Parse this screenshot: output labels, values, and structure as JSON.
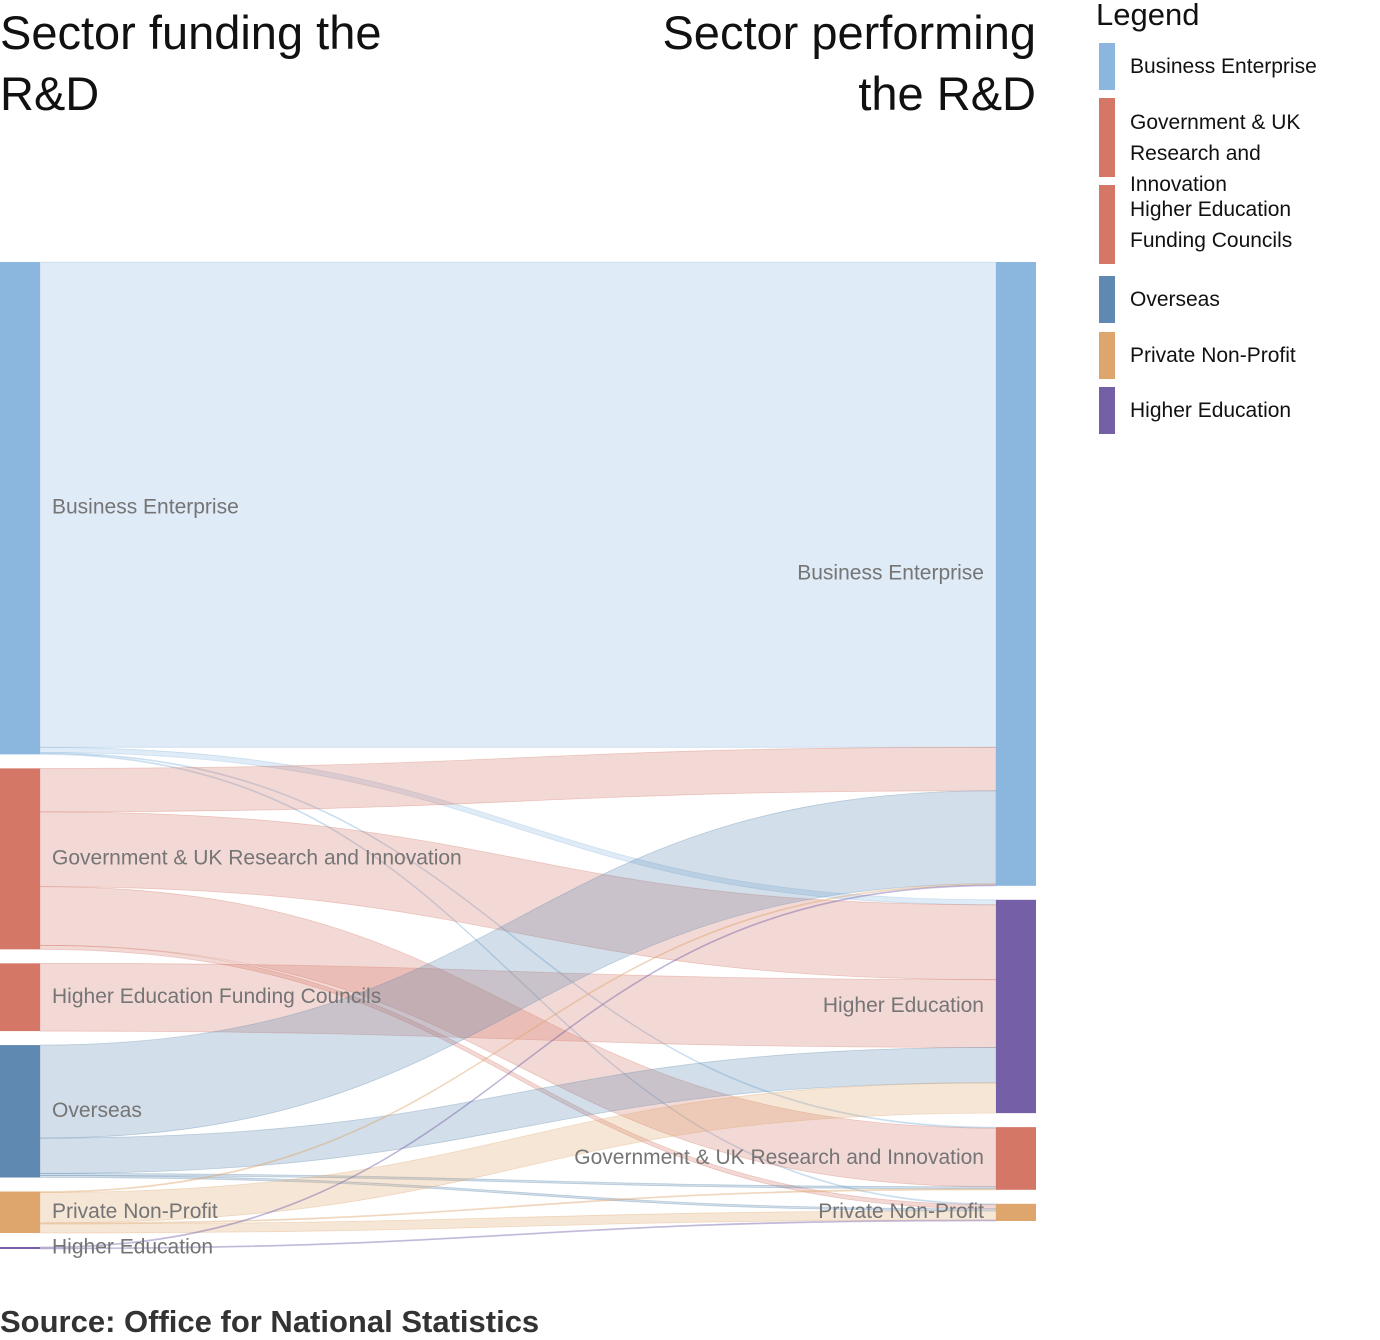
{
  "headings": {
    "left": "Sector funding the R&D",
    "right": "Sector performing the R&D"
  },
  "legend": {
    "title": "Legend",
    "items": [
      {
        "label": "Business Enterprise",
        "color": "#8bb6de"
      },
      {
        "label": "Government & UK Research and Innovation",
        "color": "#d47767"
      },
      {
        "label": "Higher Education Funding Councils",
        "color": "#d47767"
      },
      {
        "label": "Overseas",
        "color": "#5f89b0"
      },
      {
        "label": "Private Non-Profit",
        "color": "#dea66c"
      },
      {
        "label": "Higher Education",
        "color": "#7560a8"
      }
    ]
  },
  "source": "Source: Office for National Statistics",
  "chart_data": {
    "type": "sankey",
    "sources": [
      {
        "id": "s_be",
        "label": "Business Enterprise",
        "color": "#8bb6de"
      },
      {
        "id": "s_gov",
        "label": "Government & UK Research and Innovation",
        "color": "#d47767"
      },
      {
        "id": "s_hefc",
        "label": "Higher Education Funding Councils",
        "color": "#d47767"
      },
      {
        "id": "s_ovs",
        "label": "Overseas",
        "color": "#5f89b0"
      },
      {
        "id": "s_pnp",
        "label": "Private Non-Profit",
        "color": "#dea66c"
      },
      {
        "id": "s_he",
        "label": "Higher Education",
        "color": "#7560a8"
      }
    ],
    "targets": [
      {
        "id": "t_be",
        "label": "Business Enterprise",
        "color": "#8bb6de"
      },
      {
        "id": "t_he",
        "label": "Higher Education",
        "color": "#7560a8"
      },
      {
        "id": "t_gov",
        "label": "Government & UK Research and Innovation",
        "color": "#d47767"
      },
      {
        "id": "t_pnp",
        "label": "Private Non-Profit",
        "color": "#dea66c"
      }
    ],
    "flows": [
      {
        "source": "s_be",
        "target": "t_be",
        "value": 480
      },
      {
        "source": "s_be",
        "target": "t_he",
        "value": 5
      },
      {
        "source": "s_be",
        "target": "t_gov",
        "value": 1
      },
      {
        "source": "s_be",
        "target": "t_pnp",
        "value": 1
      },
      {
        "source": "s_gov",
        "target": "t_be",
        "value": 43
      },
      {
        "source": "s_gov",
        "target": "t_he",
        "value": 74
      },
      {
        "source": "s_gov",
        "target": "t_gov",
        "value": 58
      },
      {
        "source": "s_gov",
        "target": "t_pnp",
        "value": 4
      },
      {
        "source": "s_hefc",
        "target": "t_he",
        "value": 67
      },
      {
        "source": "s_ovs",
        "target": "t_be",
        "value": 92
      },
      {
        "source": "s_ovs",
        "target": "t_he",
        "value": 35
      },
      {
        "source": "s_ovs",
        "target": "t_gov",
        "value": 2
      },
      {
        "source": "s_ovs",
        "target": "t_pnp",
        "value": 2
      },
      {
        "source": "s_pnp",
        "target": "t_be",
        "value": 1
      },
      {
        "source": "s_pnp",
        "target": "t_he",
        "value": 30
      },
      {
        "source": "s_pnp",
        "target": "t_gov",
        "value": 1
      },
      {
        "source": "s_pnp",
        "target": "t_pnp",
        "value": 9
      },
      {
        "source": "s_he",
        "target": "t_be",
        "value": 1
      },
      {
        "source": "s_he",
        "target": "t_pnp",
        "value": 1
      }
    ]
  }
}
